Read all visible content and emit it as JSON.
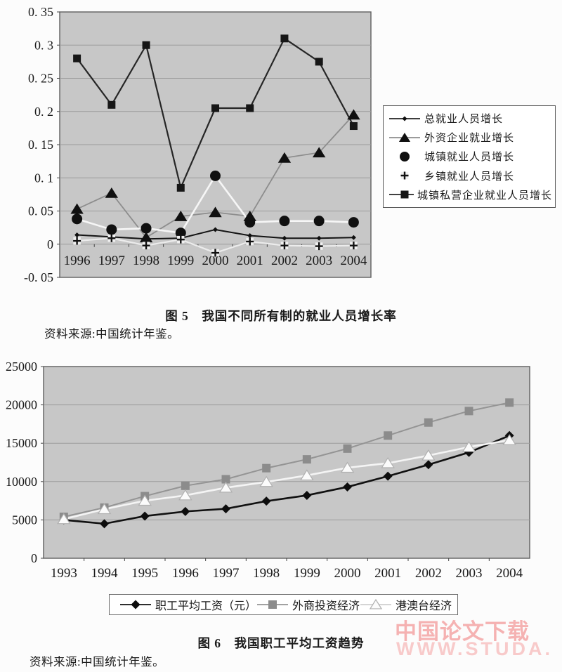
{
  "page": {
    "figure5": {
      "caption": "图 5　我国不同所有制的就业人员增长率",
      "source": "资料来源:中国统计年鉴。"
    },
    "figure6": {
      "caption": "图 6　我国职工平均工资趋势",
      "source": "资料来源:中国统计年鉴。"
    },
    "watermark": {
      "line1": "中国论文下载",
      "line2": "WWW.STUDA.",
      "color_line1": "#f5b2b2",
      "color_line2": "#f8caca"
    }
  },
  "chart_data": [
    {
      "id": "employment-growth",
      "type": "line",
      "title": "图 5 我国不同所有制的就业人员增长率",
      "categories": [
        "1996",
        "1997",
        "1998",
        "1999",
        "2000",
        "2001",
        "2002",
        "2003",
        "2004"
      ],
      "ylim": [
        -0.05,
        0.35
      ],
      "yticks": {
        "values": [
          0.35,
          0.3,
          0.25,
          0.2,
          0.15,
          0.1,
          0.05,
          0,
          -0.05
        ],
        "labels": [
          "0. 35",
          "0. 3",
          "0. 25",
          "0. 2",
          "0. 15",
          "0. 1",
          "0. 05",
          "0",
          "-0. 05"
        ]
      },
      "grid_values": [
        0.3,
        0.25,
        0.2,
        0.15,
        0.1,
        0.05,
        0
      ],
      "grid": true,
      "legend_position": "right",
      "plot_bg": "#c7c7c7",
      "series": [
        {
          "name": "总就业人员增长",
          "marker": "diamond",
          "marker_size": 3.5,
          "marker_color": "#0f0f0f",
          "line_color": "#141414",
          "line_width": 2,
          "legend_line": true,
          "legend_line_color": "#222222",
          "values": [
            0.014,
            0.011,
            0.008,
            0.009,
            0.022,
            0.013,
            0.009,
            0.009,
            0.01
          ]
        },
        {
          "name": "外资企业就业增长",
          "marker": "triangle",
          "marker_size": 8,
          "marker_color": "#101010",
          "line_color": "#8d8d8d",
          "line_width": 1.8,
          "legend_line": true,
          "legend_line_color": "#8d8d8d",
          "values": [
            0.053,
            0.077,
            0.01,
            0.042,
            0.048,
            0.042,
            0.13,
            0.138,
            0.195
          ]
        },
        {
          "name": "城镇就业人员增长",
          "marker": "circle",
          "marker_size": 7.5,
          "marker_color": "#101010",
          "line_color": "#f6f6f6",
          "line_width": 2.6,
          "legend_line": false,
          "values": [
            0.038,
            0.022,
            0.024,
            0.017,
            0.103,
            0.033,
            0.035,
            0.035,
            0.033
          ]
        },
        {
          "name": "乡镇就业人员增长",
          "marker": "plus",
          "marker_size": 5.5,
          "marker_color": "#101010",
          "line_color": "#ececec",
          "line_width": 2.2,
          "legend_line": false,
          "values": [
            0.005,
            0.009,
            -0.002,
            0.007,
            -0.013,
            0.004,
            -0.002,
            -0.003,
            -0.002
          ]
        },
        {
          "name": "城镇私营企业就业人员增长",
          "marker": "square",
          "marker_size": 5.5,
          "marker_color": "#161616",
          "line_color": "#262626",
          "line_width": 2.2,
          "legend_line": true,
          "legend_line_color": "#262626",
          "values": [
            0.28,
            0.21,
            0.3,
            0.085,
            0.205,
            0.205,
            0.31,
            0.275,
            0.178
          ]
        }
      ]
    },
    {
      "id": "wage-trend",
      "type": "line",
      "title": "图 6 我国职工平均工资趋势",
      "categories": [
        "1993",
        "1994",
        "1995",
        "1996",
        "1997",
        "1998",
        "1999",
        "2000",
        "2001",
        "2002",
        "2003",
        "2004"
      ],
      "ylim": [
        0,
        25000
      ],
      "yticks": {
        "values": [
          25000,
          20000,
          15000,
          10000,
          5000,
          0
        ],
        "labels": [
          "25000",
          "20000",
          "15000",
          "10000",
          "5000",
          "0"
        ]
      },
      "grid_values": [
        20000,
        15000,
        10000,
        5000
      ],
      "grid": true,
      "legend_position": "bottom",
      "plot_bg": "#c7c7c7",
      "series": [
        {
          "name": "职工平均工资（元）",
          "marker": "diamond",
          "marker_size": 6.5,
          "marker_color": "#0d0d0d",
          "line_color": "#111111",
          "line_width": 2.6,
          "legend_line": true,
          "legend_line_color": "#111111",
          "values": [
            5000,
            4500,
            5500,
            6100,
            6450,
            7450,
            8200,
            9300,
            10700,
            12200,
            13800,
            16000
          ]
        },
        {
          "name": "外商投资经济",
          "marker": "square",
          "marker_size": 6,
          "marker_color": "#8c8c8c",
          "line_color": "#949494",
          "line_width": 2,
          "legend_line": true,
          "legend_line_color": "#949494",
          "values": [
            5400,
            6600,
            8100,
            9450,
            10300,
            11750,
            12900,
            14300,
            16000,
            17700,
            19200,
            20300
          ]
        },
        {
          "name": "港澳台经济",
          "marker": "triangle",
          "marker_size": 7.5,
          "marker_color": "#fbfbfb",
          "marker_stroke": "#b0b0b0",
          "line_color": "#f4f4f4",
          "line_width": 2.6,
          "legend_line": true,
          "legend_line_color": "#cfcfcf",
          "values": [
            5100,
            6400,
            7500,
            8200,
            9200,
            9950,
            10800,
            11800,
            12400,
            13400,
            14500,
            15400
          ]
        }
      ]
    }
  ]
}
